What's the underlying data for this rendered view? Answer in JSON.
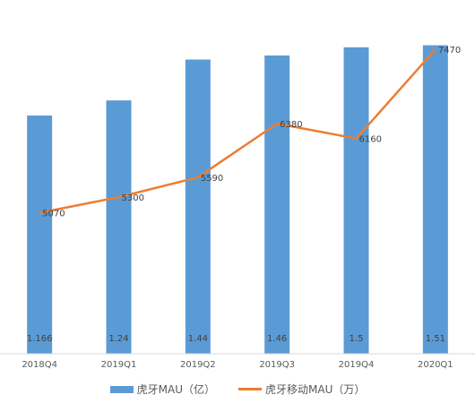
{
  "chart_data": {
    "type": "bar",
    "categories": [
      "2018Q4",
      "2019Q1",
      "2019Q2",
      "2019Q3",
      "2019Q4",
      "2020Q1"
    ],
    "series": [
      {
        "name": "虎牙MAU（亿）",
        "type": "bar",
        "axis": "left",
        "values": [
          1.166,
          1.24,
          1.44,
          1.46,
          1.5,
          1.51
        ],
        "labels": [
          "1.166",
          "1.24",
          "1.44",
          "1.46",
          "1.5",
          "1.51"
        ],
        "color": "#5b9bd5"
      },
      {
        "name": "虎牙移动MAU（万）",
        "type": "line",
        "axis": "right",
        "values": [
          5070,
          5300,
          5590,
          6380,
          6160,
          7470
        ],
        "labels": [
          "5070",
          "5300",
          "5590",
          "6380",
          "6160",
          "7470"
        ],
        "color": "#ed7d31"
      }
    ],
    "ylim_left": [
      0,
      1.6
    ],
    "ylim_right": [
      3000,
      7800
    ],
    "grid": false,
    "legend_position": "bottom"
  }
}
